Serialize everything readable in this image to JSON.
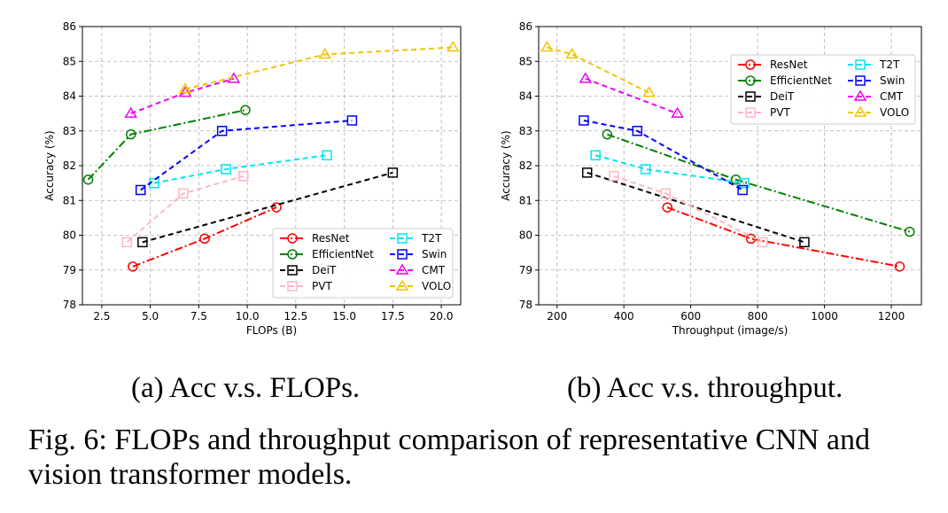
{
  "figure": {
    "caption": "Fig. 6: FLOPs and throughput comparison of representative CNN and vision transformer models."
  },
  "legend_order": [
    "ResNet",
    "T2T",
    "EfficientNet",
    "Swin",
    "DeiT",
    "CMT",
    "PVT",
    "VOLO"
  ],
  "chart_data": [
    {
      "type": "line",
      "subcaption": "(a) Acc v.s. FLOPs.",
      "xlabel": "FLOPs (B)",
      "ylabel": "Accuracy (%)",
      "xlim": [
        1.5,
        21.0
      ],
      "ylim": [
        78,
        86
      ],
      "xticks": [
        2.5,
        5.0,
        7.5,
        10.0,
        12.5,
        15.0,
        17.5,
        20.0
      ],
      "xtick_labels": [
        "2.5",
        "5.0",
        "7.5",
        "10.0",
        "12.5",
        "15.0",
        "17.5",
        "20.0"
      ],
      "yticks": [
        78,
        79,
        80,
        81,
        82,
        83,
        84,
        85,
        86
      ],
      "ytick_labels": [
        "78",
        "79",
        "80",
        "81",
        "82",
        "83",
        "84",
        "85",
        "86"
      ],
      "grid": true,
      "legend_position": "lower-right",
      "series": [
        {
          "name": "ResNet",
          "color": "#ff0000",
          "marker": "circle",
          "dash": "dashdot",
          "x": [
            4.1,
            7.8,
            11.5
          ],
          "y": [
            79.1,
            79.9,
            80.8
          ]
        },
        {
          "name": "EfficientNet",
          "color": "#008000",
          "marker": "circle",
          "dash": "dashdot",
          "x": [
            1.8,
            4.0,
            9.9
          ],
          "y": [
            81.6,
            82.9,
            83.6
          ]
        },
        {
          "name": "DeiT",
          "color": "#000000",
          "marker": "square",
          "dash": "dashed",
          "x": [
            4.6,
            17.5
          ],
          "y": [
            79.8,
            81.8
          ]
        },
        {
          "name": "PVT",
          "color": "#ffb6c1",
          "marker": "square",
          "dash": "dashed",
          "x": [
            3.8,
            6.7,
            9.8
          ],
          "y": [
            79.8,
            81.2,
            81.7
          ]
        },
        {
          "name": "T2T",
          "color": "#00e5ee",
          "marker": "square",
          "dash": "dashed",
          "x": [
            5.2,
            8.9,
            14.1
          ],
          "y": [
            81.5,
            81.9,
            82.3
          ]
        },
        {
          "name": "Swin",
          "color": "#0000ff",
          "marker": "square",
          "dash": "dashed",
          "x": [
            4.5,
            8.7,
            15.4
          ],
          "y": [
            81.3,
            83.0,
            83.3
          ]
        },
        {
          "name": "CMT",
          "color": "#ee00ee",
          "marker": "triangle",
          "dash": "dashed",
          "x": [
            4.0,
            6.8,
            9.3
          ],
          "y": [
            83.5,
            84.1,
            84.5
          ]
        },
        {
          "name": "VOLO",
          "color": "#f2c200",
          "marker": "triangle",
          "dash": "dashed",
          "x": [
            6.8,
            14.0,
            20.6
          ],
          "y": [
            84.2,
            85.2,
            85.4
          ]
        }
      ]
    },
    {
      "type": "line",
      "subcaption": "(b) Acc v.s. throughput.",
      "xlabel": "Throughput (image/s)",
      "ylabel": "Accuracy (%)",
      "xlim": [
        145,
        1290
      ],
      "ylim": [
        78,
        86
      ],
      "xticks": [
        200,
        400,
        600,
        800,
        1000,
        1200
      ],
      "xtick_labels": [
        "200",
        "400",
        "600",
        "800",
        "1000",
        "1200"
      ],
      "yticks": [
        78,
        79,
        80,
        81,
        82,
        83,
        84,
        85,
        86
      ],
      "ytick_labels": [
        "78",
        "79",
        "80",
        "81",
        "82",
        "83",
        "84",
        "85",
        "86"
      ],
      "grid": true,
      "legend_position": "top-right",
      "series": [
        {
          "name": "ResNet",
          "color": "#ff0000",
          "marker": "circle",
          "dash": "dashdot",
          "x": [
            530,
            780,
            1225
          ],
          "y": [
            80.8,
            79.9,
            79.1
          ]
        },
        {
          "name": "EfficientNet",
          "color": "#008000",
          "marker": "circle",
          "dash": "dashdot",
          "x": [
            350,
            735,
            1255
          ],
          "y": [
            82.9,
            81.6,
            80.1
          ]
        },
        {
          "name": "DeiT",
          "color": "#000000",
          "marker": "square",
          "dash": "dashed",
          "x": [
            290,
            940
          ],
          "y": [
            81.8,
            79.8
          ]
        },
        {
          "name": "PVT",
          "color": "#ffb6c1",
          "marker": "square",
          "dash": "dashed",
          "x": [
            370,
            525,
            815
          ],
          "y": [
            81.7,
            81.2,
            79.8
          ]
        },
        {
          "name": "T2T",
          "color": "#00e5ee",
          "marker": "square",
          "dash": "dashed",
          "x": [
            315,
            465,
            760
          ],
          "y": [
            82.3,
            81.9,
            81.5
          ]
        },
        {
          "name": "Swin",
          "color": "#0000ff",
          "marker": "square",
          "dash": "dashed",
          "x": [
            280,
            440,
            755
          ],
          "y": [
            83.3,
            83.0,
            81.3
          ]
        },
        {
          "name": "CMT",
          "color": "#ee00ee",
          "marker": "triangle",
          "dash": "dashed",
          "x": [
            285,
            560
          ],
          "y": [
            84.5,
            83.5
          ]
        },
        {
          "name": "VOLO",
          "color": "#f2c200",
          "marker": "triangle",
          "dash": "dashed",
          "x": [
            170,
            245,
            475
          ],
          "y": [
            85.4,
            85.2,
            84.1
          ]
        }
      ]
    }
  ]
}
